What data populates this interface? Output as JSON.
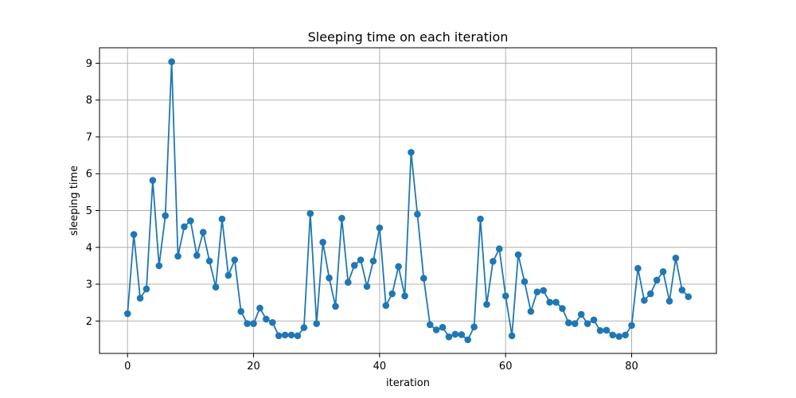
{
  "chart_data": {
    "type": "line",
    "title": "Sleeping time on each iteration",
    "xlabel": "iteration",
    "ylabel": "sleeping time",
    "xlim": [
      -4.45,
      93.45
    ],
    "ylim": [
      1.12,
      9.42
    ],
    "xticks": [
      0,
      20,
      40,
      60,
      80
    ],
    "yticks": [
      2,
      3,
      4,
      5,
      6,
      7,
      8,
      9
    ],
    "grid": true,
    "legend": "none",
    "series": [
      {
        "color": "#1f77b4",
        "marker": "circle",
        "x": [
          0,
          1,
          2,
          3,
          4,
          5,
          6,
          7,
          8,
          9,
          10,
          11,
          12,
          13,
          14,
          15,
          16,
          17,
          18,
          19,
          20,
          21,
          22,
          23,
          24,
          25,
          26,
          27,
          28,
          29,
          30,
          31,
          32,
          33,
          34,
          35,
          36,
          37,
          38,
          39,
          40,
          41,
          42,
          43,
          44,
          45,
          46,
          47,
          48,
          49,
          50,
          51,
          52,
          53,
          54,
          55,
          56,
          57,
          58,
          59,
          60,
          61,
          62,
          63,
          64,
          65,
          66,
          67,
          68,
          69,
          70,
          71,
          72,
          73,
          74,
          75,
          76,
          77,
          78,
          79,
          80,
          81,
          82,
          83,
          84,
          85,
          86,
          87,
          88,
          89
        ],
        "y": [
          2.2,
          4.35,
          2.62,
          2.87,
          5.82,
          3.5,
          4.86,
          9.04,
          3.76,
          4.56,
          4.72,
          3.78,
          4.41,
          3.63,
          2.92,
          4.77,
          3.24,
          3.66,
          2.26,
          1.93,
          1.93,
          2.35,
          2.05,
          1.96,
          1.6,
          1.62,
          1.62,
          1.6,
          1.82,
          4.92,
          1.93,
          4.14,
          3.17,
          2.4,
          4.79,
          3.05,
          3.51,
          3.66,
          2.94,
          3.63,
          4.53,
          2.42,
          2.74,
          3.48,
          2.68,
          6.58,
          4.9,
          3.16,
          1.9,
          1.76,
          1.83,
          1.57,
          1.64,
          1.63,
          1.49,
          1.84,
          4.77,
          2.45,
          3.62,
          3.96,
          2.68,
          1.6,
          3.8,
          3.07,
          2.26,
          2.79,
          2.83,
          2.51,
          2.51,
          2.34,
          1.95,
          1.93,
          2.18,
          1.93,
          2.03,
          1.74,
          1.75,
          1.62,
          1.58,
          1.62,
          1.88,
          3.43,
          2.56,
          2.74,
          3.11,
          3.34,
          2.54,
          3.71,
          2.84,
          2.66
        ]
      }
    ]
  },
  "style": {
    "line_color": "#1f77b4",
    "grid_color": "#b0b0b0",
    "axes_color": "#000000",
    "background": "#ffffff"
  }
}
